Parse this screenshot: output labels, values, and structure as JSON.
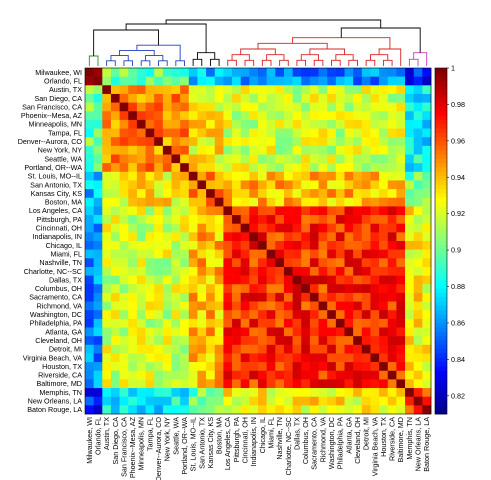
{
  "chart_data": {
    "type": "heatmap",
    "title": "",
    "xlabel": "",
    "ylabel": "",
    "labels": [
      "Milwaukee, WI",
      "Orlando, FL",
      "Austin, TX",
      "San Diego, CA",
      "San Francisco, CA",
      "Phoenix--Mesa, AZ",
      "Minneapolis, MN",
      "Tampa, FL",
      "Denver--Aurora, CO",
      "New York, NY",
      "Seattle, WA",
      "Portland, OR--WA",
      "St. Louis, MO--IL",
      "San Antonio, TX",
      "Kansas City, KS",
      "Boston, MA",
      "Los Angeles, CA",
      "Pittsburgh, PA",
      "Cincinnati, OH",
      "Indianapolis, IN",
      "Chicago, IL",
      "Miami, FL",
      "Nashville, TN",
      "Charlotte, NC--SC",
      "Dallas, TX",
      "Columbus, OH",
      "Sacramento, CA",
      "Richmond, VA",
      "Washington, DC",
      "Philadelphia, PA",
      "Atlanta, GA",
      "Cleveland, OH",
      "Detroit, MI",
      "Virginia Beach, VA",
      "Houston, TX",
      "Riverside, CA",
      "Baltimore, MD",
      "Memphis, TN",
      "New Orleans, LA",
      "Baton Rouge, LA"
    ],
    "colorbar": {
      "min": 0.81,
      "max": 1.0,
      "ticks": [
        "1",
        "0.98",
        "0.96",
        "0.94",
        "0.92",
        "0.9",
        "0.88",
        "0.86",
        "0.84",
        "0.82"
      ],
      "tick_values": [
        1.0,
        0.98,
        0.96,
        0.94,
        0.92,
        0.9,
        0.88,
        0.86,
        0.84,
        0.82
      ],
      "colormap": "jet"
    },
    "clusters": [
      {
        "color": "#2e8b2e",
        "members": [
          0,
          1
        ]
      },
      {
        "color": "#1f3fbf",
        "members": [
          2,
          3,
          4,
          5,
          6,
          7,
          8,
          9,
          10,
          11
        ]
      },
      {
        "color": "#000000",
        "members": [
          12,
          13,
          14,
          15
        ]
      },
      {
        "color": "#d92020",
        "members": [
          16,
          17,
          18,
          19,
          20,
          21,
          22,
          23,
          24,
          25,
          26,
          27,
          28,
          29,
          30,
          31,
          32,
          33,
          34,
          35,
          36
        ]
      },
      {
        "color": "#c23cc2",
        "members": [
          37,
          38,
          39
        ]
      }
    ],
    "block_similarity": [
      [
        1.0,
        0.9,
        0.87,
        0.86,
        0.84
      ],
      [
        0.9,
        0.95,
        0.93,
        0.92,
        0.88
      ],
      [
        0.87,
        0.93,
        0.95,
        0.94,
        0.9
      ],
      [
        0.86,
        0.92,
        0.94,
        0.97,
        0.93
      ],
      [
        0.84,
        0.88,
        0.9,
        0.93,
        0.96
      ]
    ],
    "diagonal": 1.0,
    "grid": false,
    "legend": "colorbar-right"
  }
}
